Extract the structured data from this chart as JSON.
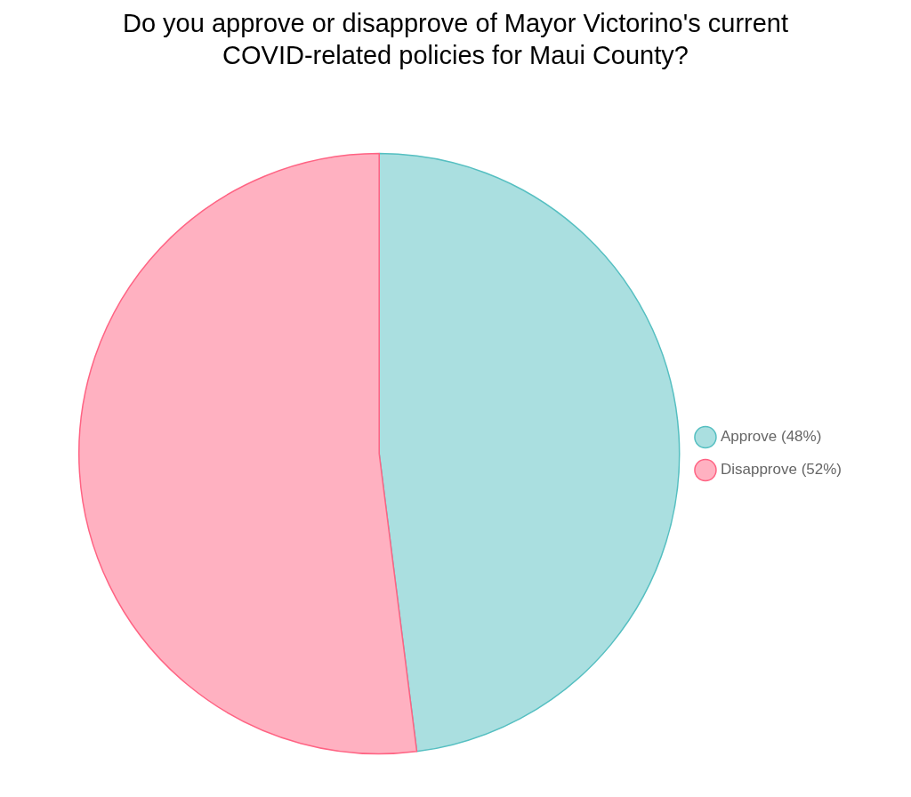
{
  "chart_data": {
    "type": "pie",
    "title": "Do you approve or disapprove of Mayor Victorino's current COVID-related policies for Maui County?",
    "categories": [
      "Approve (48%)",
      "Disapprove (52%)"
    ],
    "values": [
      48,
      52
    ],
    "colors": [
      "#aadfe0",
      "#ffb1c1"
    ],
    "legend": "right"
  }
}
